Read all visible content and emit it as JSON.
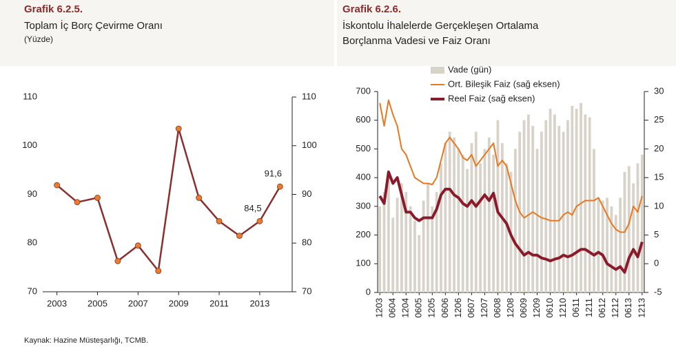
{
  "chart_data": [
    {
      "type": "line",
      "label": "Grafik 6.2.5.",
      "title": "Toplam İç Borç Çevirme Oranı",
      "subtitle": "(Yüzde)",
      "x": [
        2003,
        2004,
        2005,
        2006,
        2007,
        2008,
        2009,
        2010,
        2011,
        2012,
        2013,
        2014
      ],
      "values": [
        91.9,
        88.4,
        89.3,
        76.3,
        79.5,
        74.3,
        103.5,
        89.3,
        84.5,
        81.5,
        84.5,
        91.6
      ],
      "value_labels": [
        null,
        null,
        null,
        null,
        null,
        null,
        null,
        null,
        null,
        null,
        "84,5",
        "91,6"
      ],
      "color": "#8c2d2d",
      "marker_color": "#e87d2a",
      "xlim": [
        2002.3,
        2014.6
      ],
      "xticks": [
        2003,
        2005,
        2007,
        2009,
        2011,
        2013
      ],
      "ylim": [
        70,
        110
      ],
      "yticks": [
        70,
        80,
        90,
        100,
        110
      ],
      "y2lim": [
        70,
        110
      ],
      "y2ticks": [
        70,
        80,
        90,
        100,
        110
      ]
    },
    {
      "type": "combo",
      "label": "Grafik 6.2.6.",
      "title": "İskontolu İhalelerde Gerçekleşen Ortalama Borçlanma Vadesi ve Faiz Oranı",
      "categories": [
        "1203",
        null,
        null,
        "0604",
        null,
        null,
        "1204",
        null,
        null,
        "0605",
        null,
        null,
        "1205",
        null,
        null,
        "0606",
        null,
        null,
        "1206",
        null,
        null,
        "0607",
        null,
        null,
        "1207",
        null,
        null,
        "0608",
        null,
        null,
        "1208",
        null,
        null,
        "0609",
        null,
        null,
        "1209",
        null,
        null,
        "0610",
        null,
        null,
        "1210",
        null,
        null,
        "0611",
        null,
        null,
        "1211",
        null,
        null,
        "0612",
        null,
        null,
        "1212",
        null,
        null,
        "0613",
        null,
        null,
        "1213"
      ],
      "series": [
        {
          "name": "Vade (gün)",
          "kind": "bar",
          "color": "#d8d2c8",
          "values": [
            300,
            350,
            400,
            260,
            330,
            380,
            350,
            300,
            250,
            200,
            320,
            380,
            300,
            350,
            450,
            520,
            560,
            540,
            500,
            480,
            430,
            520,
            560,
            450,
            500,
            540,
            480,
            600,
            520,
            450,
            420,
            500,
            560,
            600,
            620,
            580,
            500,
            560,
            600,
            640,
            620,
            580,
            560,
            600,
            650,
            640,
            660,
            620,
            610,
            500,
            330,
            320,
            330,
            300,
            270,
            330,
            420,
            440,
            380,
            450,
            480
          ]
        },
        {
          "name": "Ort. Bileşik Faiz (sağ eksen)",
          "kind": "line",
          "axis": "y2",
          "color": "#e8771e",
          "line_width": 2,
          "values": [
            28,
            24,
            28.5,
            26,
            24,
            20,
            19,
            17,
            15,
            14.5,
            14,
            14,
            13.8,
            15,
            18,
            21,
            22,
            21,
            20,
            18.5,
            18,
            19,
            17,
            18,
            19,
            20,
            21,
            17,
            18,
            17,
            14,
            11,
            9,
            8,
            8.5,
            9,
            8.5,
            8,
            7.8,
            7.5,
            7.5,
            7.5,
            8.5,
            9,
            8.5,
            10,
            10.5,
            11,
            11,
            11,
            11.5,
            10,
            8.5,
            7,
            6,
            5.5,
            5.5,
            7,
            10,
            9,
            11.8
          ]
        },
        {
          "name": "Reel Faiz (sağ eksen)",
          "kind": "line",
          "axis": "y2",
          "color": "#8b1a2a",
          "line_width": 4,
          "values": [
            11.8,
            10.5,
            16,
            14,
            15,
            12,
            9,
            9,
            8,
            7.5,
            8,
            8,
            8,
            9.5,
            12,
            13,
            13,
            12,
            11.5,
            10.5,
            10,
            11,
            10,
            11,
            12,
            11,
            12.3,
            9,
            8,
            7,
            5,
            3.5,
            2.5,
            1.5,
            2,
            1.5,
            1.5,
            1,
            0.8,
            0.5,
            0.8,
            1,
            1.5,
            1.2,
            1.5,
            2,
            2.5,
            2.5,
            2,
            1.5,
            2,
            1.5,
            0,
            -0.5,
            -1,
            -0.5,
            -1.5,
            1,
            2.5,
            1.2,
            3.8
          ]
        }
      ],
      "ylim": [
        0,
        700
      ],
      "yticks": [
        0,
        100,
        200,
        300,
        400,
        500,
        600,
        700
      ],
      "y2lim": [
        -5,
        30
      ],
      "y2ticks": [
        -5,
        0,
        5,
        10,
        15,
        20,
        25,
        30
      ]
    }
  ],
  "source": "Kaynak: Hazine Müsteşarlığı, TCMB."
}
